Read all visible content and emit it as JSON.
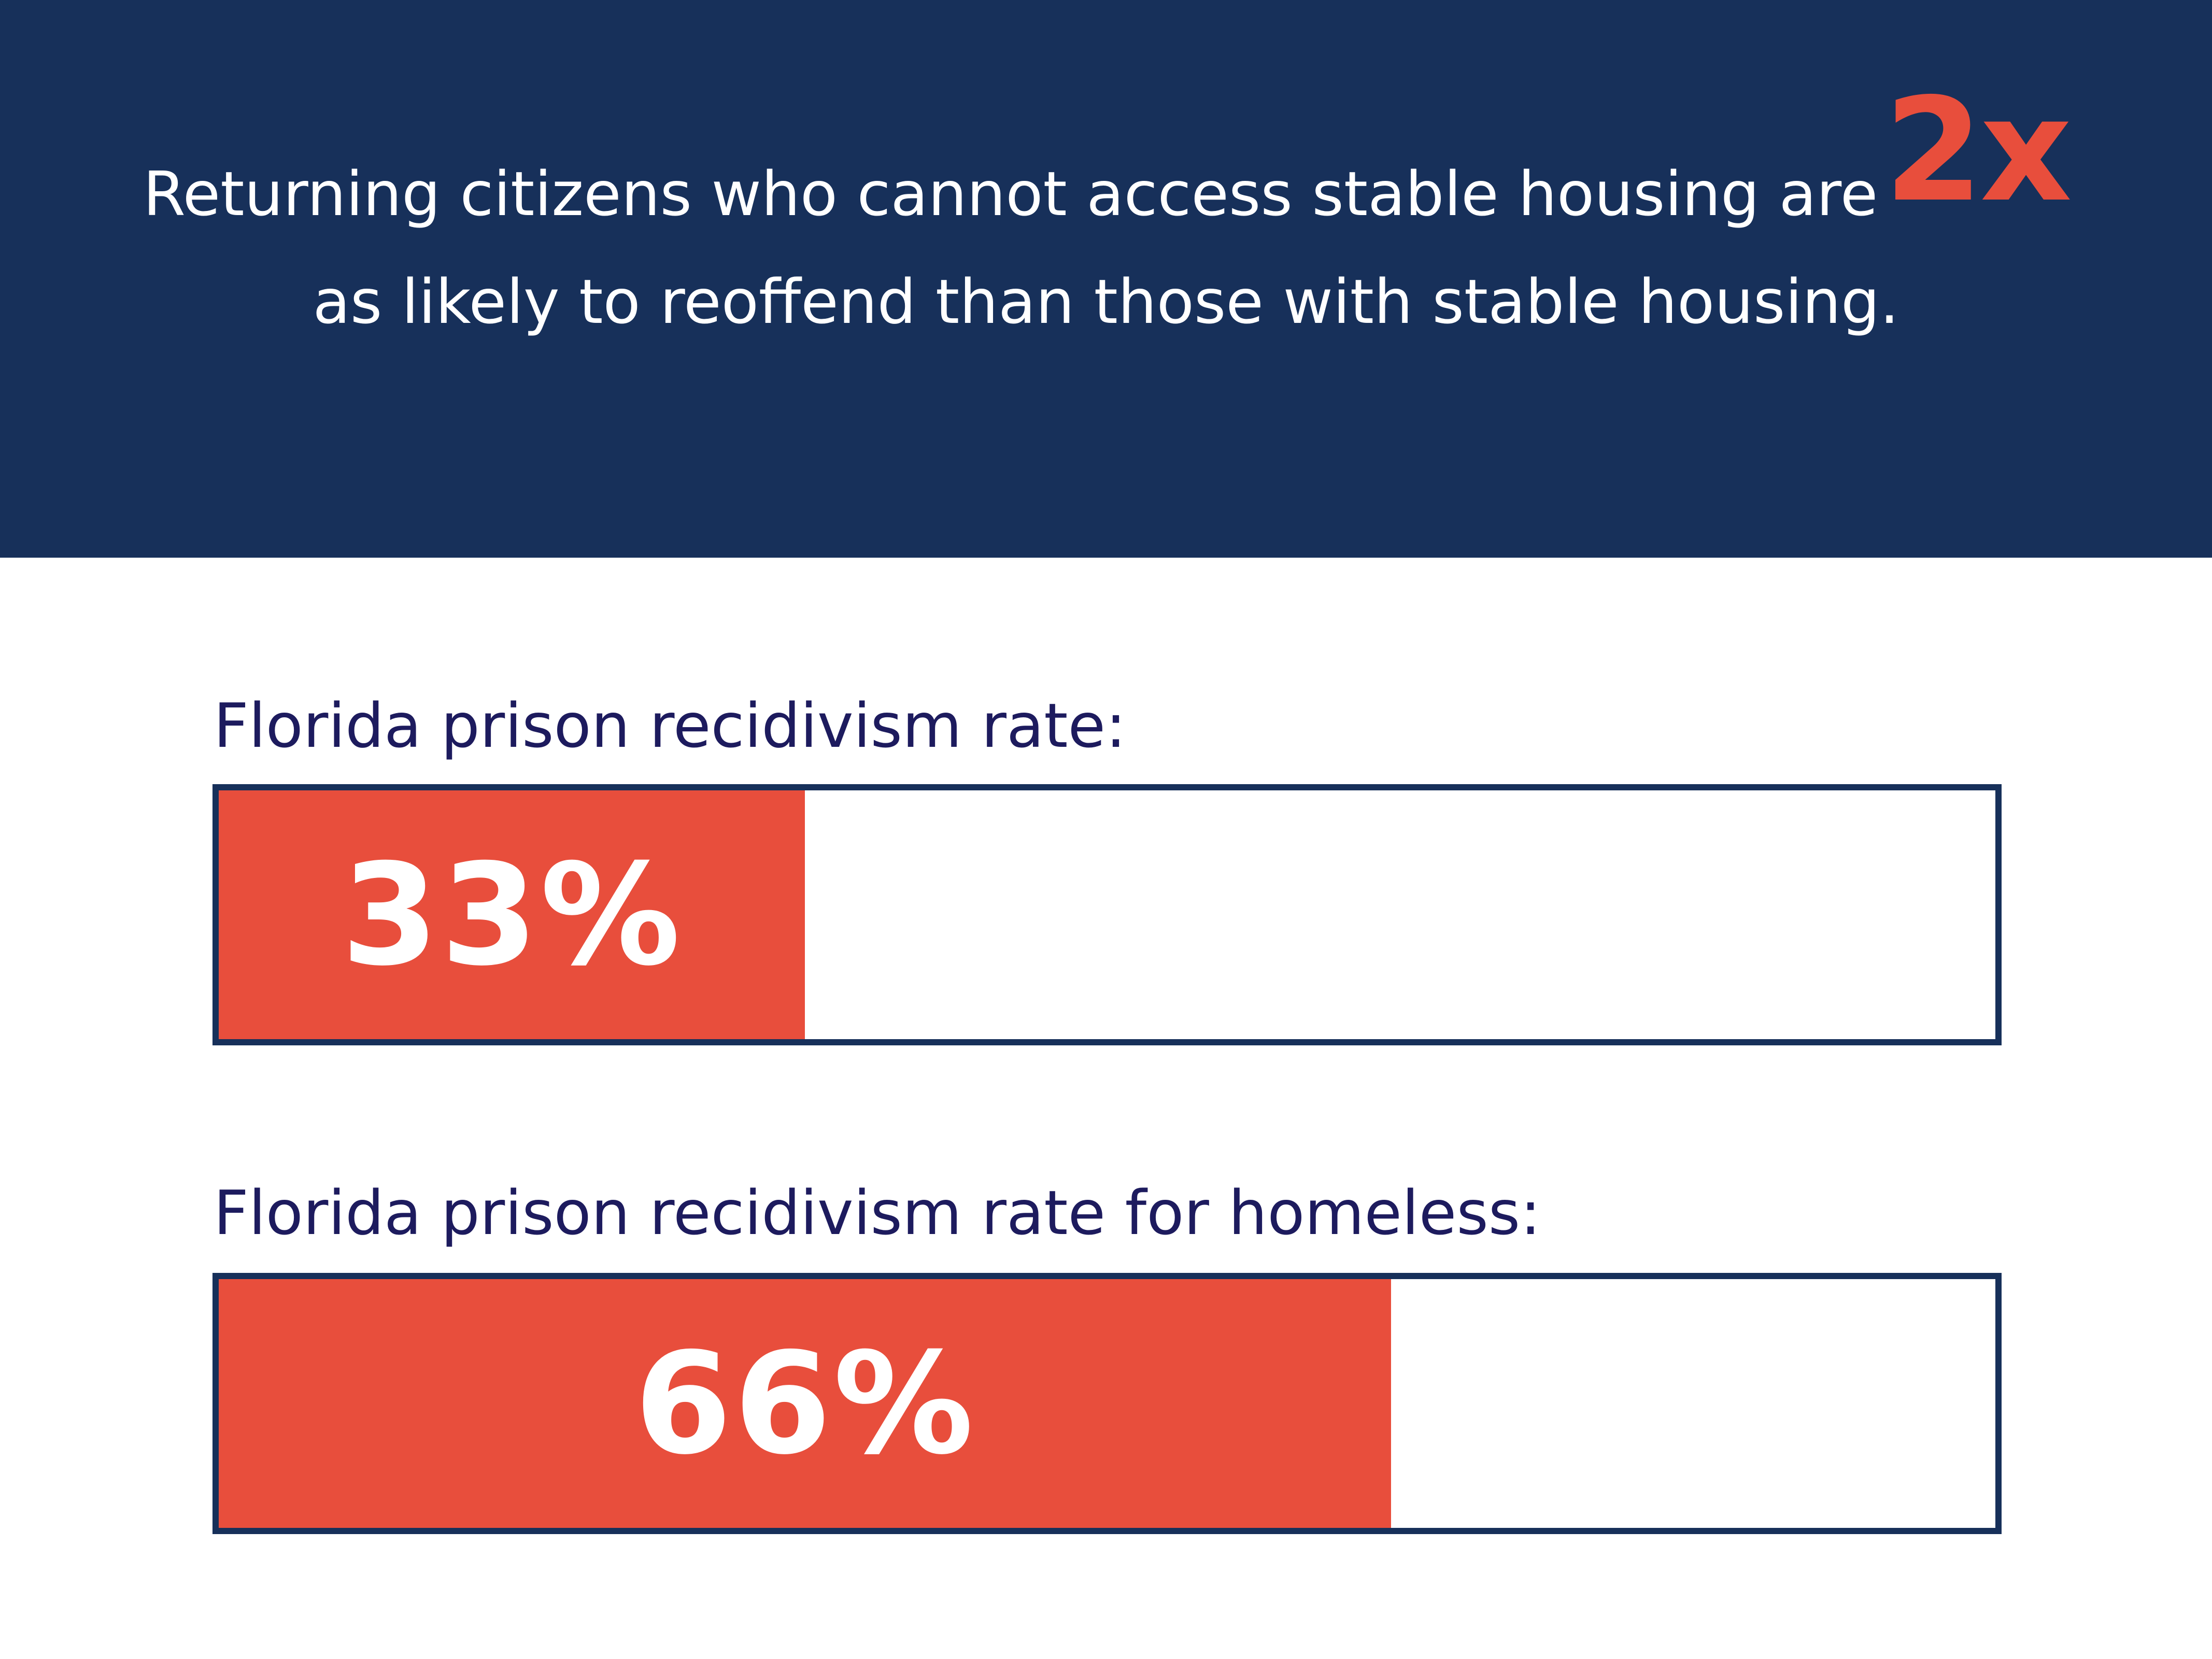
{
  "banner": {
    "headline_line1": "Returning citizens who cannot access stable housing are",
    "multiplier": "2x",
    "headline_line2": "as likely to reoffend than those with stable housing."
  },
  "colors": {
    "banner_background": "#17305a",
    "accent": "#e84e3c",
    "label_text": "#1d1b5e",
    "bar_border": "#17305a"
  },
  "chart_data": {
    "type": "bar",
    "orientation": "horizontal",
    "bars": [
      {
        "label": "Florida prison recidivism rate:",
        "value": 33,
        "display": "33%"
      },
      {
        "label": "Florida prison recidivism rate for homeless:",
        "value": 66,
        "display": "66%"
      }
    ],
    "xlim": [
      0,
      100
    ],
    "grid": false
  }
}
